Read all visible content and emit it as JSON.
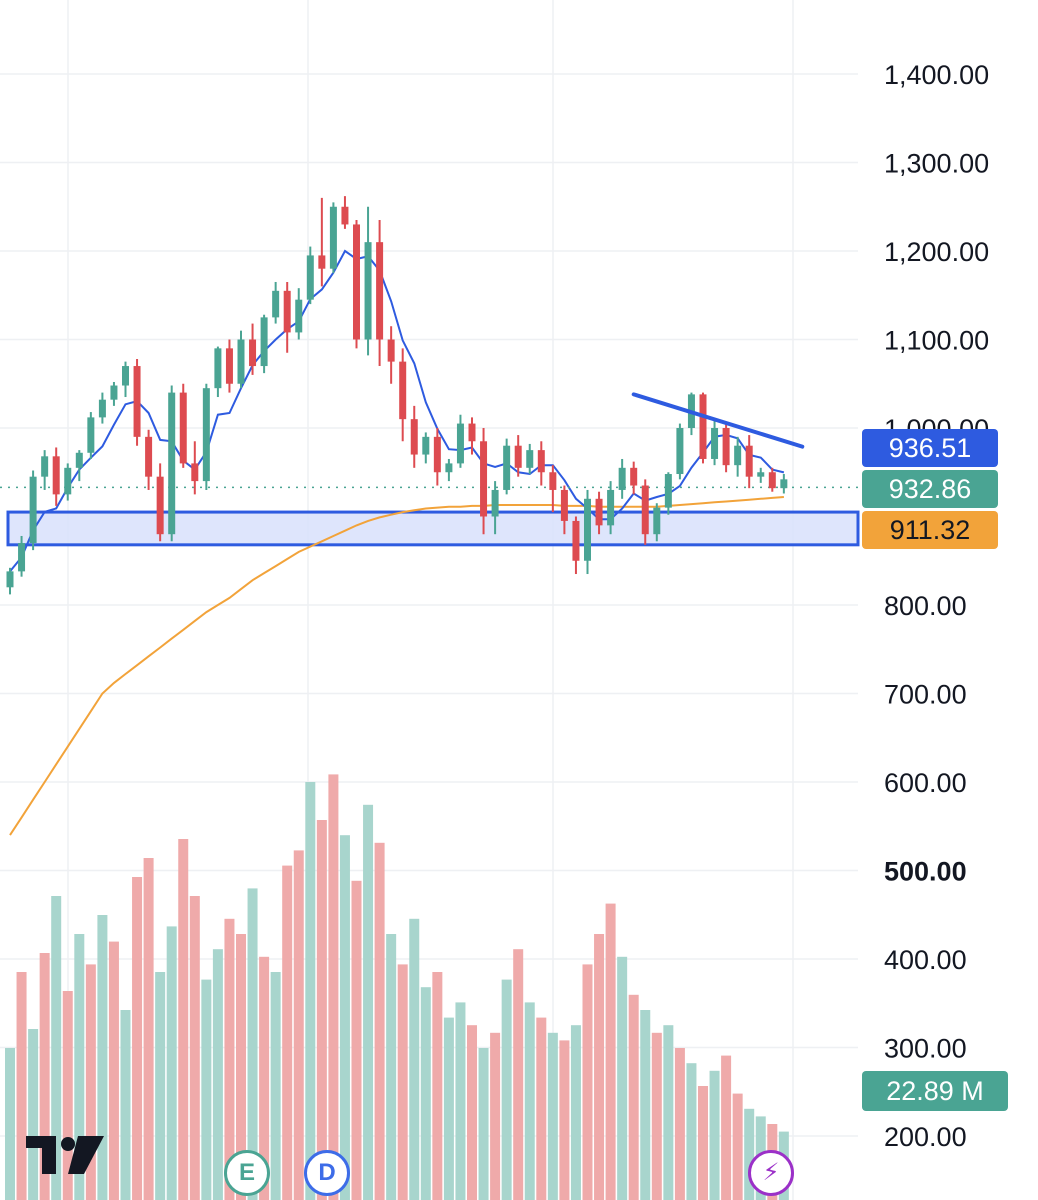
{
  "chart_data": {
    "type": "candlestick",
    "y_axis": {
      "ticks": [
        "1,400.00",
        "1,300.00",
        "1,200.00",
        "1,100.00",
        "1,000.00",
        "800.00",
        "700.00",
        "600.00",
        "500.00",
        "400.00",
        "300.00",
        "200.00"
      ],
      "tick_values": [
        1400,
        1300,
        1200,
        1100,
        1000,
        800,
        700,
        600,
        500,
        400,
        300,
        200
      ],
      "range": [
        160,
        1480
      ]
    },
    "last_price": "932.86",
    "last_price_value": 932.86,
    "ma_fast_value": "936.51",
    "ma_slow_value": "911.32",
    "volume_label": "22.89 M",
    "support_zone": {
      "low": 868,
      "high": 905
    },
    "trendline": {
      "from_index": 54,
      "from_value": 1038,
      "to_index": 66,
      "to_value": 936
    },
    "candles": [
      [
        820,
        838,
        812,
        842
      ],
      [
        838,
        870,
        832,
        878
      ],
      [
        870,
        945,
        862,
        952
      ],
      [
        945,
        968,
        930,
        975
      ],
      [
        968,
        925,
        912,
        978
      ],
      [
        925,
        955,
        918,
        960
      ],
      [
        955,
        972,
        940,
        975
      ],
      [
        972,
        1012,
        965,
        1018
      ],
      [
        1012,
        1032,
        1005,
        1040
      ],
      [
        1032,
        1048,
        1025,
        1052
      ],
      [
        1048,
        1070,
        1035,
        1075
      ],
      [
        1070,
        990,
        980,
        1078
      ],
      [
        990,
        945,
        930,
        998
      ],
      [
        945,
        880,
        872,
        960
      ],
      [
        880,
        1040,
        872,
        1048
      ],
      [
        1040,
        960,
        955,
        1050
      ],
      [
        960,
        940,
        925,
        985
      ],
      [
        940,
        1045,
        930,
        1050
      ],
      [
        1045,
        1090,
        1035,
        1092
      ],
      [
        1090,
        1050,
        1040,
        1100
      ],
      [
        1050,
        1100,
        1045,
        1110
      ],
      [
        1100,
        1070,
        1060,
        1118
      ],
      [
        1070,
        1125,
        1062,
        1128
      ],
      [
        1125,
        1155,
        1118,
        1165
      ],
      [
        1155,
        1108,
        1085,
        1165
      ],
      [
        1108,
        1145,
        1100,
        1158
      ],
      [
        1145,
        1195,
        1140,
        1205
      ],
      [
        1195,
        1180,
        1160,
        1260
      ],
      [
        1180,
        1250,
        1175,
        1255
      ],
      [
        1250,
        1230,
        1225,
        1262
      ],
      [
        1230,
        1100,
        1090,
        1235
      ],
      [
        1100,
        1210,
        1082,
        1250
      ],
      [
        1210,
        1100,
        1070,
        1235
      ],
      [
        1100,
        1075,
        1050,
        1115
      ],
      [
        1075,
        1010,
        985,
        1090
      ],
      [
        1010,
        970,
        955,
        1025
      ],
      [
        970,
        990,
        960,
        995
      ],
      [
        990,
        950,
        935,
        1000
      ],
      [
        950,
        960,
        940,
        965
      ],
      [
        960,
        1005,
        955,
        1015
      ],
      [
        1005,
        985,
        970,
        1012
      ],
      [
        985,
        900,
        880,
        1000
      ],
      [
        900,
        930,
        880,
        940
      ],
      [
        930,
        980,
        925,
        988
      ],
      [
        980,
        955,
        945,
        992
      ],
      [
        955,
        975,
        948,
        982
      ],
      [
        975,
        950,
        935,
        985
      ],
      [
        950,
        930,
        905,
        958
      ],
      [
        930,
        895,
        880,
        935
      ],
      [
        895,
        850,
        835,
        900
      ],
      [
        850,
        920,
        835,
        930
      ],
      [
        920,
        890,
        880,
        928
      ],
      [
        890,
        930,
        880,
        940
      ],
      [
        930,
        955,
        920,
        965
      ],
      [
        955,
        935,
        925,
        962
      ],
      [
        935,
        880,
        868,
        942
      ],
      [
        880,
        910,
        872,
        915
      ],
      [
        910,
        948,
        902,
        950
      ],
      [
        948,
        1000,
        942,
        1005
      ],
      [
        1000,
        1038,
        992,
        1040
      ],
      [
        1038,
        965,
        960,
        1040
      ],
      [
        965,
        1000,
        958,
        1008
      ],
      [
        1000,
        958,
        950,
        1005
      ],
      [
        958,
        980,
        945,
        990
      ],
      [
        980,
        945,
        932,
        992
      ],
      [
        945,
        950,
        938,
        955
      ],
      [
        950,
        932,
        928,
        955
      ],
      [
        932,
        942,
        926,
        948
      ]
    ],
    "volumes": [
      [
        40,
        "up"
      ],
      [
        60,
        "down"
      ],
      [
        45,
        "up"
      ],
      [
        65,
        "down"
      ],
      [
        80,
        "up"
      ],
      [
        55,
        "down"
      ],
      [
        70,
        "up"
      ],
      [
        62,
        "down"
      ],
      [
        75,
        "up"
      ],
      [
        68,
        "down"
      ],
      [
        50,
        "up"
      ],
      [
        85,
        "down"
      ],
      [
        90,
        "down"
      ],
      [
        60,
        "up"
      ],
      [
        72,
        "up"
      ],
      [
        95,
        "down"
      ],
      [
        80,
        "down"
      ],
      [
        58,
        "up"
      ],
      [
        66,
        "up"
      ],
      [
        74,
        "down"
      ],
      [
        70,
        "down"
      ],
      [
        82,
        "up"
      ],
      [
        64,
        "down"
      ],
      [
        60,
        "up"
      ],
      [
        88,
        "down"
      ],
      [
        92,
        "down"
      ],
      [
        110,
        "up"
      ],
      [
        100,
        "down"
      ],
      [
        112,
        "down"
      ],
      [
        96,
        "up"
      ],
      [
        84,
        "down"
      ],
      [
        104,
        "up"
      ],
      [
        94,
        "down"
      ],
      [
        70,
        "up"
      ],
      [
        62,
        "down"
      ],
      [
        74,
        "up"
      ],
      [
        56,
        "up"
      ],
      [
        60,
        "down"
      ],
      [
        48,
        "up"
      ],
      [
        52,
        "up"
      ],
      [
        46,
        "down"
      ],
      [
        40,
        "up"
      ],
      [
        44,
        "down"
      ],
      [
        58,
        "up"
      ],
      [
        66,
        "down"
      ],
      [
        52,
        "up"
      ],
      [
        48,
        "down"
      ],
      [
        44,
        "up"
      ],
      [
        42,
        "down"
      ],
      [
        46,
        "up"
      ],
      [
        62,
        "down"
      ],
      [
        70,
        "down"
      ],
      [
        78,
        "down"
      ],
      [
        64,
        "up"
      ],
      [
        54,
        "down"
      ],
      [
        50,
        "up"
      ],
      [
        44,
        "down"
      ],
      [
        46,
        "up"
      ],
      [
        40,
        "down"
      ],
      [
        36,
        "up"
      ],
      [
        30,
        "down"
      ],
      [
        34,
        "up"
      ],
      [
        38,
        "down"
      ],
      [
        28,
        "down"
      ],
      [
        24,
        "up"
      ],
      [
        22,
        "up"
      ],
      [
        20,
        "down"
      ],
      [
        18,
        "up"
      ]
    ],
    "colors": {
      "up": "#4aa493",
      "down": "#dd4b50",
      "vol_up": "#a8d5cd",
      "vol_down": "#efaaaa",
      "ma_fast": "#2e5be0",
      "ma_slow": "#f2a33a",
      "zone_fill": "#d8e0fb",
      "zone_stroke": "#2e5be0",
      "trendline": "#2e5be0",
      "grid": "#eef0f3"
    },
    "badges": [
      {
        "letter": "E",
        "color": "#4aa493"
      },
      {
        "letter": "D",
        "color": "#3d6ce8"
      },
      {
        "letter": "⚡",
        "color": "#9b30c8"
      }
    ]
  }
}
